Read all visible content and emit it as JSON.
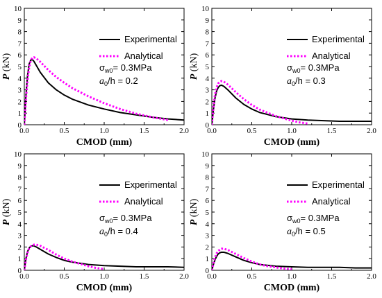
{
  "chart_data": [
    {
      "type": "line",
      "xlabel": "CMOD (mm)",
      "ylabel_italic": "P",
      "ylabel_unit": " (kN)",
      "xlim": [
        0,
        2.0
      ],
      "ylim": [
        0,
        10
      ],
      "xticks": [
        "0.0",
        "0.5",
        "1.0",
        "1.5",
        "2.0"
      ],
      "yticks": [
        "0",
        "1",
        "2",
        "3",
        "4",
        "5",
        "6",
        "7",
        "8",
        "9",
        "10"
      ],
      "legend": [
        "Experimental",
        "Analytical"
      ],
      "annotation": {
        "sigma_sym": "σ",
        "sigma_sub": "w0",
        "sigma_val": "= 0.3MPa",
        "a_sym": "a",
        "a_sub": "0",
        "a_val": "/h = 0.2"
      },
      "series": [
        {
          "name": "Experimental",
          "color": "#000000",
          "style": "solid",
          "x": [
            0,
            0.02,
            0.04,
            0.06,
            0.08,
            0.1,
            0.12,
            0.15,
            0.2,
            0.3,
            0.4,
            0.5,
            0.6,
            0.8,
            1.0,
            1.2,
            1.4,
            1.6,
            1.8,
            2.0
          ],
          "y": [
            0,
            2.5,
            4.2,
            5.2,
            5.55,
            5.6,
            5.45,
            5.1,
            4.5,
            3.6,
            3.0,
            2.55,
            2.2,
            1.7,
            1.35,
            1.05,
            0.85,
            0.65,
            0.5,
            0.4
          ]
        },
        {
          "name": "Analytical",
          "color": "#ff00ff",
          "style": "dotted",
          "x": [
            0,
            0.02,
            0.04,
            0.06,
            0.08,
            0.1,
            0.12,
            0.15,
            0.2,
            0.3,
            0.4,
            0.5,
            0.6,
            0.8,
            1.0,
            1.2,
            1.4,
            1.6,
            1.8
          ],
          "y": [
            0,
            2.2,
            3.8,
            4.9,
            5.5,
            5.75,
            5.8,
            5.7,
            5.4,
            4.7,
            4.1,
            3.6,
            3.15,
            2.45,
            1.85,
            1.35,
            0.95,
            0.65,
            0.4
          ]
        }
      ]
    },
    {
      "type": "line",
      "xlabel": "CMOD (mm)",
      "ylabel_italic": "P",
      "ylabel_unit": " (kN)",
      "xlim": [
        0,
        2.0
      ],
      "ylim": [
        0,
        10
      ],
      "xticks": [
        "0.0",
        "0.5",
        "1.0",
        "1.5",
        "2.0"
      ],
      "yticks": [
        "0",
        "1",
        "2",
        "3",
        "4",
        "5",
        "6",
        "7",
        "8",
        "9",
        "10"
      ],
      "legend": [
        "Experimental",
        "Analytical"
      ],
      "annotation": {
        "sigma_sym": "σ",
        "sigma_sub": "w0",
        "sigma_val": "= 0.3MPa",
        "a_sym": "a",
        "a_sub": "0",
        "a_val": "/h = 0.3"
      },
      "series": [
        {
          "name": "Experimental",
          "color": "#000000",
          "style": "solid",
          "x": [
            0,
            0.02,
            0.04,
            0.06,
            0.08,
            0.1,
            0.12,
            0.15,
            0.2,
            0.3,
            0.4,
            0.5,
            0.6,
            0.8,
            1.0,
            1.2,
            1.4,
            1.6,
            1.8,
            2.0
          ],
          "y": [
            0,
            1.3,
            2.3,
            2.9,
            3.2,
            3.35,
            3.4,
            3.3,
            3.0,
            2.3,
            1.75,
            1.35,
            1.05,
            0.7,
            0.5,
            0.4,
            0.35,
            0.3,
            0.3,
            0.3
          ]
        },
        {
          "name": "Analytical",
          "color": "#ff00ff",
          "style": "dotted",
          "x": [
            0,
            0.02,
            0.04,
            0.06,
            0.08,
            0.1,
            0.12,
            0.15,
            0.2,
            0.3,
            0.4,
            0.5,
            0.6,
            0.8,
            1.0,
            1.1,
            1.2
          ],
          "y": [
            0,
            1.5,
            2.6,
            3.2,
            3.55,
            3.7,
            3.75,
            3.7,
            3.45,
            2.8,
            2.2,
            1.7,
            1.3,
            0.75,
            0.35,
            0.2,
            0.1
          ]
        }
      ]
    },
    {
      "type": "line",
      "xlabel": "CMOD (mm)",
      "ylabel_italic": "P",
      "ylabel_unit": " (kN)",
      "xlim": [
        0,
        2.0
      ],
      "ylim": [
        0,
        10
      ],
      "xticks": [
        "0.0",
        "0.5",
        "1.0",
        "1.5",
        "2.0"
      ],
      "yticks": [
        "0",
        "1",
        "2",
        "3",
        "4",
        "5",
        "6",
        "7",
        "8",
        "9",
        "10"
      ],
      "legend": [
        "Experimental",
        "Analytical"
      ],
      "annotation": {
        "sigma_sym": "σ",
        "sigma_sub": "w0",
        "sigma_val": "= 0.3MPa",
        "a_sym": "a",
        "a_sub": "0",
        "a_val": "/h = 0.4"
      },
      "series": [
        {
          "name": "Experimental",
          "color": "#000000",
          "style": "solid",
          "x": [
            0,
            0.02,
            0.04,
            0.06,
            0.08,
            0.1,
            0.12,
            0.15,
            0.2,
            0.3,
            0.4,
            0.5,
            0.6,
            0.8,
            1.0,
            1.2,
            1.4,
            1.6,
            1.8,
            2.0
          ],
          "y": [
            0,
            1.0,
            1.6,
            1.9,
            2.05,
            2.1,
            2.1,
            2.0,
            1.8,
            1.4,
            1.1,
            0.85,
            0.7,
            0.5,
            0.4,
            0.35,
            0.3,
            0.3,
            0.3,
            0.25
          ]
        },
        {
          "name": "Analytical",
          "color": "#ff00ff",
          "style": "dotted",
          "x": [
            0,
            0.02,
            0.04,
            0.06,
            0.08,
            0.1,
            0.12,
            0.15,
            0.2,
            0.3,
            0.4,
            0.5,
            0.6,
            0.7,
            0.8,
            0.9,
            1.0
          ],
          "y": [
            0,
            0.9,
            1.5,
            1.85,
            2.05,
            2.15,
            2.2,
            2.2,
            2.1,
            1.75,
            1.35,
            1.0,
            0.75,
            0.55,
            0.35,
            0.2,
            0.1
          ]
        }
      ]
    },
    {
      "type": "line",
      "xlabel": "CMOD (mm)",
      "ylabel_italic": "P",
      "ylabel_unit": " (kN)",
      "xlim": [
        0,
        2.0
      ],
      "ylim": [
        0,
        10
      ],
      "xticks": [
        "0.0",
        "0.5",
        "1.0",
        "1.5",
        "2.0"
      ],
      "yticks": [
        "0",
        "1",
        "2",
        "3",
        "4",
        "5",
        "6",
        "7",
        "8",
        "9",
        "10"
      ],
      "legend": [
        "Experimental",
        "Analytical"
      ],
      "annotation": {
        "sigma_sym": "σ",
        "sigma_sub": "w0",
        "sigma_val": "= 0.3MPa",
        "a_sym": "a",
        "a_sub": "0",
        "a_val": "/h = 0.5"
      },
      "series": [
        {
          "name": "Experimental",
          "color": "#000000",
          "style": "solid",
          "x": [
            0,
            0.02,
            0.04,
            0.06,
            0.08,
            0.1,
            0.12,
            0.15,
            0.2,
            0.3,
            0.4,
            0.5,
            0.6,
            0.8,
            1.0,
            1.2,
            1.4,
            1.6,
            1.8,
            2.0
          ],
          "y": [
            0,
            0.5,
            0.9,
            1.2,
            1.4,
            1.5,
            1.55,
            1.55,
            1.45,
            1.15,
            0.85,
            0.65,
            0.5,
            0.35,
            0.3,
            0.25,
            0.25,
            0.25,
            0.2,
            0.2
          ]
        },
        {
          "name": "Analytical",
          "color": "#ff00ff",
          "style": "dotted",
          "x": [
            0,
            0.02,
            0.04,
            0.06,
            0.08,
            0.1,
            0.12,
            0.15,
            0.2,
            0.3,
            0.4,
            0.5,
            0.6,
            0.7,
            0.8,
            0.9,
            1.0
          ],
          "y": [
            0,
            0.6,
            1.1,
            1.45,
            1.65,
            1.78,
            1.85,
            1.85,
            1.75,
            1.4,
            1.05,
            0.75,
            0.5,
            0.35,
            0.25,
            0.15,
            0.1
          ]
        }
      ]
    }
  ]
}
